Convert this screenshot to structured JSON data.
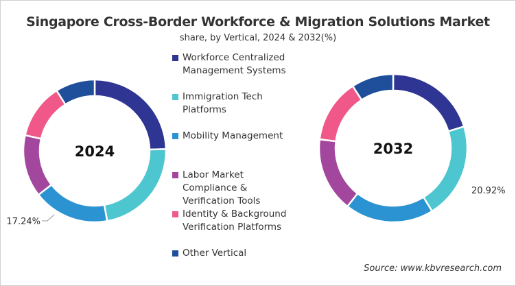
{
  "chart_data": [
    {
      "type": "pie",
      "variant": "donut",
      "title": "Singapore Cross-Border Workforce & Migration Solutions Market",
      "subtitle": "share, by Vertical, 2024 & 2032(%)",
      "center_label": "2024",
      "categories": [
        "Workforce Centralized Management Systems",
        "Immigration Tech Platforms",
        "Mobility Management",
        "Labor Market Compliance & Verification Tools",
        "Identity & Background Verification Platforms",
        "Other Vertical"
      ],
      "values": [
        24.6,
        22.6,
        17.24,
        14.1,
        12.5,
        8.96
      ],
      "data_labels": [
        {
          "category_index": 2,
          "text": "17.24%"
        }
      ]
    },
    {
      "type": "pie",
      "variant": "donut",
      "center_label": "2032",
      "categories": [
        "Workforce Centralized Management Systems",
        "Immigration Tech Platforms",
        "Mobility Management",
        "Labor Market Compliance & Verification Tools",
        "Identity & Background Verification Platforms",
        "Other Vertical"
      ],
      "values": [
        20.28,
        20.92,
        19.4,
        16.3,
        13.9,
        9.2
      ],
      "data_labels": [
        {
          "category_index": 1,
          "text": "20.92%"
        }
      ]
    }
  ],
  "colors": [
    "#2E3592",
    "#4EC6CF",
    "#2B93D1",
    "#A3479E",
    "#EF5888",
    "#1F4E9A"
  ],
  "legend": {
    "placement": "center",
    "items": [
      "Workforce Centralized Management Systems",
      "Immigration Tech Platforms",
      "Mobility Management",
      "Labor Market Compliance & Verification Tools",
      "Identity & Background Verification Platforms",
      "Other Vertical"
    ]
  },
  "source": "Source: www.kbvresearch.com"
}
